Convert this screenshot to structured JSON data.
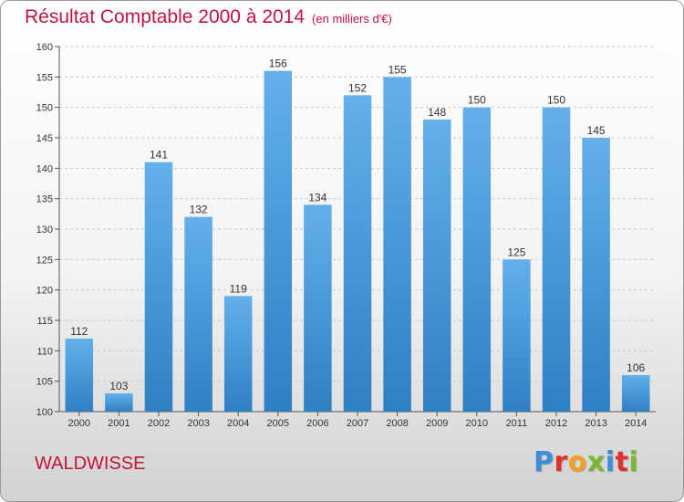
{
  "title": "Résultat Comptable 2000 à 2014",
  "unit": "(en milliers d'€)",
  "commune": "WALDWISSE",
  "logo": {
    "letters": [
      {
        "ch": "P",
        "color": "#3a8fd6"
      },
      {
        "ch": "r",
        "color": "#e0312e"
      },
      {
        "ch": "o",
        "color": "#f2a020"
      },
      {
        "ch": "x",
        "color": "#79b830"
      },
      {
        "ch": "i",
        "color": "#3a8fd6"
      },
      {
        "ch": "t",
        "color": "#e0312e"
      },
      {
        "ch": "i",
        "color": "#79b830"
      }
    ]
  },
  "colors": {
    "bar_light": "#63b0ea",
    "bar_dark": "#2f7fc3",
    "title": "#c0143c"
  },
  "chart_data": {
    "type": "bar",
    "title": "Résultat Comptable 2000 à 2014",
    "xlabel": "",
    "ylabel": "(en milliers d'€)",
    "ylim": [
      100,
      160
    ],
    "ytick_step": 5,
    "grid": "y dashed",
    "categories": [
      "2000",
      "2001",
      "2002",
      "2003",
      "2004",
      "2005",
      "2006",
      "2007",
      "2008",
      "2009",
      "2010",
      "2011",
      "2012",
      "2013",
      "2014"
    ],
    "values": [
      112,
      103,
      141,
      132,
      119,
      156,
      134,
      152,
      155,
      148,
      150,
      125,
      150,
      145,
      106
    ]
  }
}
